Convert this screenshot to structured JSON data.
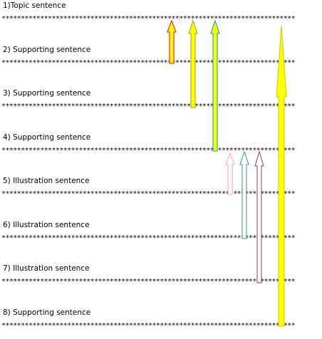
{
  "rows": [
    {
      "label": "1)Topic sentence"
    },
    {
      "label": "2) Supporting sentence"
    },
    {
      "label": "3) Supporting sentence"
    },
    {
      "label": "4) Supporting sentence"
    },
    {
      "label": "5) Illustration sentence"
    },
    {
      "label": "6) Illustration sentence"
    },
    {
      "label": "7) Illustration sentence"
    },
    {
      "label": "8) Supporting sentence"
    }
  ],
  "separator": "****************************************************************************",
  "arrows": [
    {
      "from_row": 2,
      "to_row": 1,
      "fill": "#FFFF00",
      "outline": "#FF0000"
    },
    {
      "from_row": 3,
      "to_row": 1,
      "fill": "#FFFF00",
      "outline": "#A0A000"
    },
    {
      "from_row": 4,
      "to_row": 1,
      "fill": "#FFFF00",
      "outline": "#00A0A0"
    },
    {
      "from_row": 5,
      "to_row": 4,
      "fill": "#FFFFFF",
      "outline": "#FF99CC"
    },
    {
      "from_row": 6,
      "to_row": 4,
      "fill": "#FFFFFF",
      "outline": "#339977"
    },
    {
      "from_row": 7,
      "to_row": 4,
      "fill": "#FFFFFF",
      "outline": "#993366"
    },
    {
      "from_row": 8,
      "to_row": 1,
      "fill": "#FFFF00",
      "outline": "#C8C800"
    }
  ]
}
